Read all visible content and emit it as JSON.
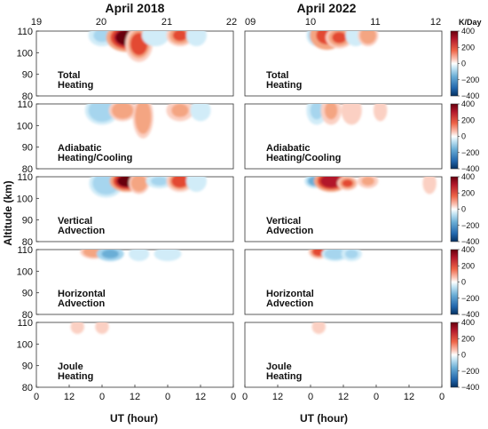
{
  "chart_data": {
    "type": "heatmap",
    "columns": [
      {
        "title": "April 2018",
        "top_tick_labels": [
          "19",
          "20",
          "21",
          "22"
        ]
      },
      {
        "title": "April 2022",
        "top_tick_labels": [
          "09",
          "10",
          "11",
          "12"
        ]
      }
    ],
    "colorbar": {
      "unit": "K/Day",
      "range": [
        -400,
        400
      ],
      "ticks": [
        "400",
        "200",
        "0",
        "−200",
        "−400"
      ]
    },
    "xlabel": "UT (hour)",
    "x_ticks": [
      "0",
      "12",
      "0",
      "12",
      "0",
      "12",
      "0"
    ],
    "ylabel": "Altitude (km)",
    "y_ticks": [
      "110",
      "100",
      "90",
      "80"
    ],
    "ylim": [
      80,
      110
    ],
    "rows": [
      {
        "label_line1": "Total",
        "label_line2": "Heating",
        "blobs": [
          [
            [
              32,
              108,
              4,
              3,
              -90
            ],
            [
              44,
              107,
              6,
              4,
              400
            ],
            [
              50,
              104,
              4,
              5,
              200
            ],
            [
              58,
              108,
              4,
              3,
              -60
            ],
            [
              70,
              108,
              4,
              3,
              150
            ],
            [
              78,
              108,
              3,
              3,
              -50
            ]
          ],
          [
            [
              35,
              108,
              3,
              3,
              -120
            ],
            [
              40,
              108,
              5,
              4,
              230
            ],
            [
              46,
              107,
              4,
              3,
              160
            ],
            [
              54,
              108,
              3,
              3,
              -50
            ],
            [
              60,
              108,
              3,
              3,
              120
            ]
          ]
        ]
      },
      {
        "label_line1": "Adiabatic",
        "label_line2": "Heating/Cooling",
        "blobs": [
          [
            [
              32,
              107,
              5,
              4,
              -140
            ],
            [
              42,
              107,
              4,
              3,
              110
            ],
            [
              52,
              104,
              3,
              6,
              130
            ],
            [
              70,
              107,
              4,
              3,
              90
            ],
            [
              80,
              107,
              3,
              3,
              -60
            ]
          ],
          [
            [
              35,
              107,
              3,
              4,
              -80
            ],
            [
              42,
              107,
              3,
              4,
              80
            ],
            [
              52,
              107,
              3,
              4,
              60
            ],
            [
              66,
              107,
              2,
              3,
              40
            ]
          ]
        ]
      },
      {
        "label_line1": "Vertical",
        "label_line2": "Advection",
        "blobs": [
          [
            [
              34,
              107,
              5,
              4,
              -120
            ],
            [
              44,
              108,
              5,
              3,
              400
            ],
            [
              50,
              107,
              3,
              3,
              120
            ],
            [
              60,
              108,
              4,
              2,
              -80
            ],
            [
              70,
              108,
              4,
              3,
              200
            ],
            [
              78,
              108,
              3,
              3,
              -50
            ]
          ],
          [
            [
              34,
              108,
              3,
              2,
              -200
            ],
            [
              42,
              108,
              5,
              3,
              320
            ],
            [
              50,
              107,
              3,
              2,
              160
            ],
            [
              60,
              108,
              3,
              2,
              80
            ],
            [
              90,
              107,
              2,
              3,
              60
            ]
          ]
        ]
      },
      {
        "label_line1": "Horizontal",
        "label_line2": "Advection",
        "blobs": [
          [
            [
              28,
              109,
              4,
              2,
              130
            ],
            [
              36,
              108,
              4,
              2,
              -220
            ],
            [
              50,
              108,
              3,
              2,
              -40
            ],
            [
              64,
              108,
              4,
              2,
              -60
            ]
          ],
          [
            [
              36,
              109,
              3,
              2,
              200
            ],
            [
              44,
              108,
              4,
              2,
              -130
            ],
            [
              52,
              108,
              3,
              2,
              -80
            ]
          ]
        ]
      },
      {
        "label_line1": "Joule",
        "label_line2": "Heating",
        "blobs": [
          [
            [
              20,
              108,
              2,
              2,
              60
            ],
            [
              32,
              108,
              2,
              2,
              60
            ]
          ],
          [
            [
              36,
              108,
              2,
              2,
              40
            ]
          ]
        ]
      }
    ]
  }
}
